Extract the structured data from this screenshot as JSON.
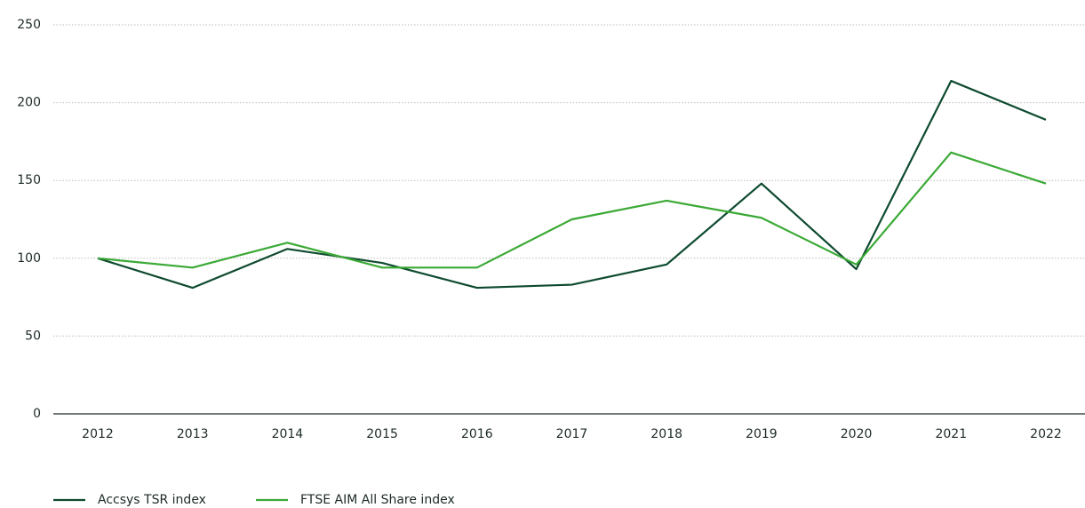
{
  "chart_data": {
    "type": "line",
    "x": [
      2012,
      2013,
      2014,
      2015,
      2016,
      2017,
      2018,
      2019,
      2020,
      2021,
      2022
    ],
    "series": [
      {
        "name": "Accsys TSR index",
        "color": "#0e4a2f",
        "values": [
          100,
          81,
          106,
          97,
          81,
          83,
          96,
          148,
          93,
          214,
          189
        ]
      },
      {
        "name": "FTSE AIM All Share index",
        "color": "#3aa935",
        "values": [
          100,
          94,
          110,
          94,
          94,
          125,
          137,
          126,
          96,
          168,
          148
        ]
      }
    ],
    "ylim": [
      0,
      250
    ],
    "yticks": [
      0,
      50,
      100,
      150,
      200,
      250
    ],
    "grid": true,
    "legend": "bottom-left"
  }
}
